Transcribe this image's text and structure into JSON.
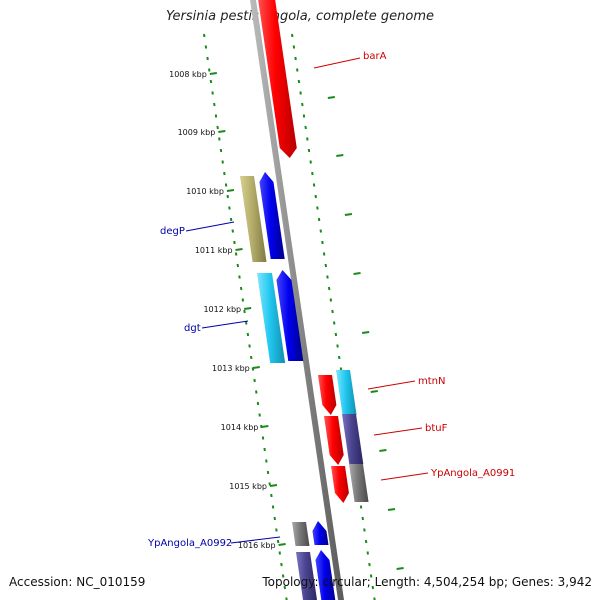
{
  "title": "Yersinia pestis Angola, complete genome",
  "footer": {
    "accession": "Accession: NC_010159",
    "topology": "Topology: circular; Length: 4,504,254 bp; Genes: 3,942"
  },
  "ruler": {
    "ticks": [
      "1008 kbp",
      "1009 kbp",
      "1010 kbp",
      "1011 kbp",
      "1012 kbp",
      "1013 kbp",
      "1014 kbp",
      "1015 kbp",
      "1016 kbp"
    ]
  },
  "genes": [
    {
      "label": "barA",
      "strand": "reverse",
      "color": "#dd1111"
    },
    {
      "label": "degP",
      "strand": "forward",
      "color": "#1111bb"
    },
    {
      "label": "dgt",
      "strand": "forward",
      "color": "#1111bb"
    },
    {
      "label": "mtnN",
      "strand": "reverse",
      "color": "#dd1111"
    },
    {
      "label": "btuF",
      "strand": "reverse",
      "color": "#dd1111"
    },
    {
      "label": "YpAngola_A0991",
      "strand": "reverse",
      "color": "#dd1111"
    },
    {
      "label": "YpAngola_A0992",
      "strand": "forward",
      "color": "#1111bb"
    }
  ],
  "colors": {
    "forward_cds": "#0000ee",
    "reverse_cds": "#ff0000",
    "olive": "#b5ad6b",
    "cyan": "#22c8f0",
    "slate": "#4a4490",
    "gray": "#777777",
    "backbone": "#8a8a8a",
    "dots": "#1a8a1a"
  }
}
